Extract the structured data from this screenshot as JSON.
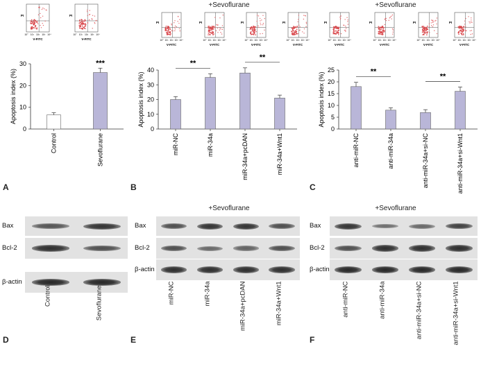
{
  "panels": {
    "A": {
      "label": "A"
    },
    "B": {
      "label": "B",
      "condition": "+Sevoflurane"
    },
    "C": {
      "label": "C",
      "condition": "+Sevoflurane"
    },
    "D": {
      "label": "D"
    },
    "E": {
      "label": "E",
      "condition": "+Sevoflurane"
    },
    "F": {
      "label": "F",
      "condition": "+Sevoflurane"
    }
  },
  "flow": {
    "xlabel": "V-FITC",
    "ylabel": "PI",
    "ticks": [
      "10°",
      "10¹",
      "10²",
      "10³",
      "10⁴"
    ]
  },
  "chart_data": [
    {
      "type": "bar",
      "panel": "A",
      "categories": [
        "Control",
        "Sevoflurane"
      ],
      "values": [
        6.5,
        26
      ],
      "errors": [
        1,
        2
      ],
      "ylabel": "Apoptosis index (%)",
      "ylim": [
        0,
        30
      ],
      "yticks": [
        "0",
        "10",
        "20",
        "30"
      ],
      "bar_colors": [
        "#ffffff",
        "#b9b6d8"
      ],
      "significance": [
        {
          "label": "***",
          "bar": 1
        }
      ]
    },
    {
      "type": "bar",
      "panel": "B",
      "categories": [
        "miR-NC",
        "miR-34a",
        "miR-34a+pcDAN",
        "miR-34a+Wnt1"
      ],
      "values": [
        20,
        35,
        38,
        21
      ],
      "errors": [
        2,
        2.5,
        3.5,
        2
      ],
      "ylabel": "Apoptosis index (%)",
      "ylim": [
        0,
        40
      ],
      "yticks": [
        "0",
        "10",
        "20",
        "30",
        "40"
      ],
      "bar_colors": [
        "#b9b6d8",
        "#b9b6d8",
        "#b9b6d8",
        "#b9b6d8"
      ],
      "significance": [
        {
          "label": "**",
          "from": 0,
          "to": 1
        },
        {
          "label": "**",
          "from": 2,
          "to": 3
        }
      ]
    },
    {
      "type": "bar",
      "panel": "C",
      "categories": [
        "anti-miR-NC",
        "anti-miR-34a",
        "anti-miR-34a+si-NC",
        "anti-miR-34a+si-Wnt1"
      ],
      "values": [
        18,
        8,
        7,
        16
      ],
      "errors": [
        1.8,
        1,
        1.2,
        1.8
      ],
      "ylabel": "Apoptosis index (%)",
      "ylim": [
        0,
        25
      ],
      "yticks": [
        "0",
        "5",
        "10",
        "15",
        "20",
        "25"
      ],
      "bar_colors": [
        "#b9b6d8",
        "#b9b6d8",
        "#b9b6d8",
        "#b9b6d8"
      ],
      "significance": [
        {
          "label": "**",
          "from": 0,
          "to": 1
        },
        {
          "label": "**",
          "from": 2,
          "to": 3
        }
      ]
    }
  ],
  "western": {
    "D": {
      "rows": [
        "Bax",
        "Bcl-2",
        "β-actin"
      ],
      "lanes": [
        "Control",
        "Sevoflurane"
      ],
      "intensity": [
        [
          0.55,
          0.8
        ],
        [
          0.85,
          0.6
        ],
        [
          0.9,
          0.9
        ]
      ]
    },
    "E": {
      "rows": [
        "Bax",
        "Bcl-2",
        "β-actin"
      ],
      "lanes": [
        "miR-NC",
        "miR-34a",
        "miR-34a+pcDAN",
        "miR-34a+Wnt1"
      ],
      "intensity": [
        [
          0.6,
          0.8,
          0.8,
          0.6
        ],
        [
          0.6,
          0.4,
          0.45,
          0.6
        ],
        [
          0.85,
          0.85,
          0.85,
          0.85
        ]
      ]
    },
    "F": {
      "rows": [
        "Bax",
        "Bcl-2",
        "β-actin"
      ],
      "lanes": [
        "anti-miR-NC",
        "anti-miR-34a",
        "anti-miR-34a+si-NC",
        "anti-miR-34a+si-Wnt1"
      ],
      "intensity": [
        [
          0.8,
          0.35,
          0.4,
          0.7
        ],
        [
          0.6,
          0.85,
          0.85,
          0.85
        ],
        [
          0.9,
          0.9,
          0.9,
          0.9
        ]
      ]
    }
  }
}
